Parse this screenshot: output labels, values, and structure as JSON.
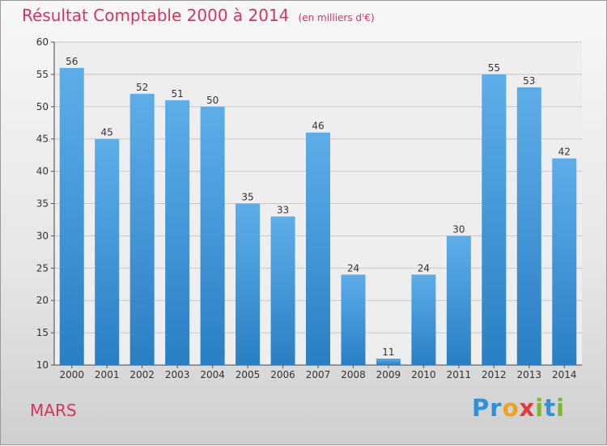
{
  "title": "Résultat Comptable 2000 à 2014",
  "unit": "(en milliers d'€)",
  "town": "MARS",
  "brand": {
    "letters": [
      "P",
      "r",
      "o",
      "x",
      "i",
      "t",
      "i"
    ],
    "colors": [
      "#2f8fd8",
      "#2f8fd8",
      "#f0a020",
      "#e03a3a",
      "#7cb82f",
      "#2f8fd8",
      "#7cb82f"
    ]
  },
  "colors": {
    "bar_top": "#5dade8",
    "bar_bottom": "#2a7fc4",
    "title": "#d4345e",
    "grid": "#c8c8c8"
  },
  "chart_data": {
    "type": "bar",
    "categories": [
      "2000",
      "2001",
      "2002",
      "2003",
      "2004",
      "2005",
      "2006",
      "2007",
      "2008",
      "2009",
      "2010",
      "2011",
      "2012",
      "2013",
      "2014"
    ],
    "values": [
      56,
      45,
      52,
      51,
      50,
      35,
      33,
      46,
      24,
      11,
      24,
      30,
      55,
      53,
      42
    ],
    "ylim": [
      10,
      60
    ],
    "yticks": [
      10,
      15,
      20,
      25,
      30,
      35,
      40,
      45,
      50,
      55,
      60
    ],
    "grid": true,
    "data_labels": true
  }
}
